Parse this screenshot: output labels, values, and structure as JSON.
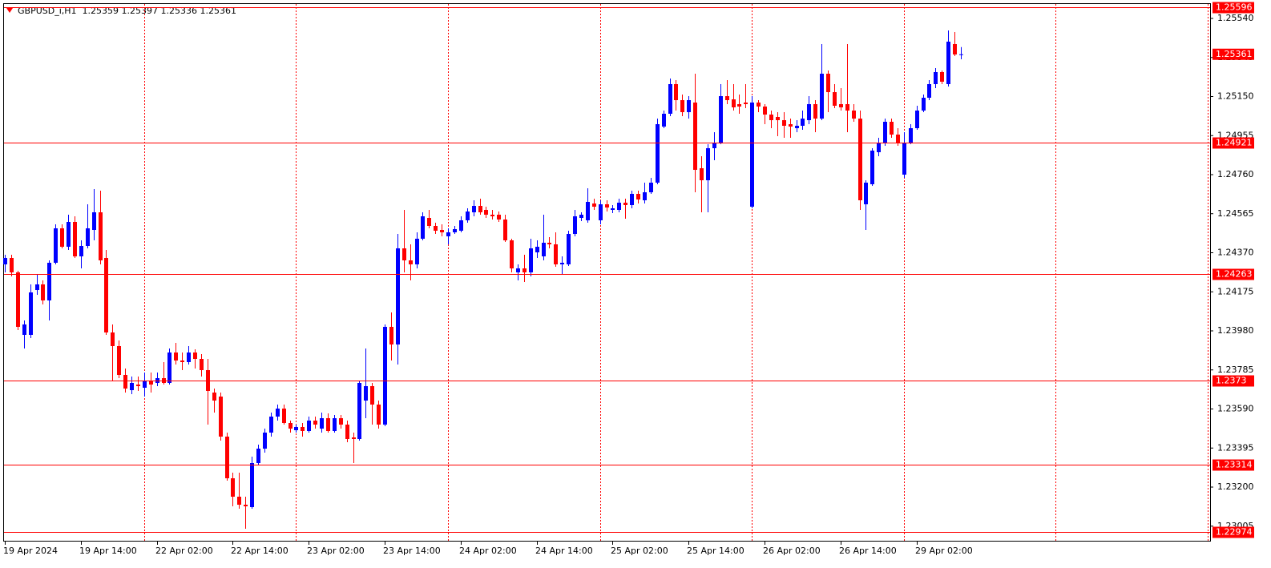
{
  "chart_data": {
    "type": "candlestick",
    "title": "GBPUSD_i,H1  1.25359 1.25397 1.25336 1.25361",
    "up_color": "#0000ff",
    "down_color": "#ff0000",
    "level_color": "#ff0000",
    "ylim": [
      1.22932,
      1.25632
    ],
    "yticks": [
      {
        "value": 1.2554,
        "label": "1.25540"
      },
      1.25345,
      {
        "value": 1.2515,
        "label": "1.25150"
      },
      1.24955,
      {
        "value": 1.2476,
        "label": "1.24760"
      },
      1.24565,
      {
        "value": 1.2437,
        "label": "1.24370"
      },
      1.24175,
      {
        "value": 1.2398,
        "label": "1.23980"
      },
      1.23785,
      {
        "value": 1.2359,
        "label": "1.23590"
      },
      1.23395,
      {
        "value": 1.232,
        "label": "1.23200"
      },
      1.23005
    ],
    "hlines": [
      1.25596,
      1.24921,
      1.24263,
      1.2373,
      1.23314,
      1.22974
    ],
    "x_labels": [
      "19 Apr 2024",
      "19 Apr 14:00",
      "22 Apr 02:00",
      "22 Apr 14:00",
      "23 Apr 02:00",
      "23 Apr 14:00",
      "24 Apr 02:00",
      "24 Apr 14:00",
      "25 Apr 02:00",
      "25 Apr 14:00",
      "26 Apr 02:00",
      "26 Apr 14:00",
      "29 Apr 02:00"
    ],
    "ohlc": [
      [
        1.24312,
        1.2436,
        1.24272,
        1.24344
      ],
      [
        1.24344,
        1.2436,
        1.24252,
        1.24272
      ],
      [
        1.24272,
        1.2428,
        1.23984,
        1.24
      ],
      [
        1.2396,
        1.24032,
        1.23892,
        1.24012
      ],
      [
        1.2396,
        1.24212,
        1.23944,
        1.24172
      ],
      [
        1.24184,
        1.24264,
        1.2416,
        1.24212
      ],
      [
        1.24212,
        1.24232,
        1.24112,
        1.24132
      ],
      [
        1.24132,
        1.24332,
        1.24032,
        1.2432
      ],
      [
        1.2432,
        1.24512,
        1.24312,
        1.24492
      ],
      [
        1.24492,
        1.24512,
        1.24392,
        1.244
      ],
      [
        1.244,
        1.2456,
        1.24384,
        1.24524
      ],
      [
        1.24524,
        1.24552,
        1.24344,
        1.24352
      ],
      [
        1.24352,
        1.24432,
        1.24292,
        1.24404
      ],
      [
        1.24404,
        1.24612,
        1.24392,
        1.24492
      ],
      [
        1.24484,
        1.24688,
        1.24432,
        1.24572
      ],
      [
        1.24572,
        1.2468,
        1.24312,
        1.24332
      ],
      [
        1.24344,
        1.24384,
        1.2396,
        1.23972
      ],
      [
        1.23972,
        1.24012,
        1.23732,
        1.23904
      ],
      [
        1.23904,
        1.23932,
        1.23744,
        1.2376
      ],
      [
        1.2376,
        1.23792,
        1.23672,
        1.23692
      ],
      [
        1.23684,
        1.23752,
        1.23664,
        1.2372
      ],
      [
        1.23712,
        1.23752,
        1.2368,
        1.23704
      ],
      [
        1.23696,
        1.23772,
        1.23652,
        1.23732
      ],
      [
        1.23732,
        1.23772,
        1.23672,
        1.23712
      ],
      [
        1.2372,
        1.23772,
        1.23704,
        1.23744
      ],
      [
        1.23744,
        1.23824,
        1.23712,
        1.2372
      ],
      [
        1.2372,
        1.23892,
        1.23712,
        1.23872
      ],
      [
        1.23872,
        1.2392,
        1.23812,
        1.23832
      ],
      [
        1.23832,
        1.23872,
        1.23784,
        1.23824
      ],
      [
        1.23824,
        1.23904,
        1.23812,
        1.23872
      ],
      [
        1.23872,
        1.23888,
        1.23792,
        1.2384
      ],
      [
        1.2384,
        1.23864,
        1.23752,
        1.23784
      ],
      [
        1.23784,
        1.2384,
        1.23512,
        1.2368
      ],
      [
        1.23672,
        1.23692,
        1.23572,
        1.23632
      ],
      [
        1.23652,
        1.23672,
        1.23432,
        1.23452
      ],
      [
        1.23452,
        1.23472,
        1.23232,
        1.23244
      ],
      [
        1.23244,
        1.23272,
        1.23104,
        1.23152
      ],
      [
        1.23152,
        1.23272,
        1.23092,
        1.23112
      ],
      [
        1.23112,
        1.23152,
        1.22992,
        1.23104
      ],
      [
        1.231,
        1.23352,
        1.23092,
        1.2332
      ],
      [
        1.2332,
        1.23412,
        1.23312,
        1.23392
      ],
      [
        1.23392,
        1.23492,
        1.23372,
        1.23472
      ],
      [
        1.23472,
        1.23572,
        1.23452,
        1.23552
      ],
      [
        1.23552,
        1.23612,
        1.23532,
        1.23592
      ],
      [
        1.23592,
        1.23612,
        1.23512,
        1.2352
      ],
      [
        1.2352,
        1.23532,
        1.23472,
        1.23492
      ],
      [
        1.23484,
        1.23512,
        1.23472,
        1.235
      ],
      [
        1.235,
        1.2352,
        1.23452,
        1.2348
      ],
      [
        1.2348,
        1.23552,
        1.23472,
        1.23532
      ],
      [
        1.23532,
        1.23552,
        1.23492,
        1.23512
      ],
      [
        1.23492,
        1.23572,
        1.23472,
        1.23544
      ],
      [
        1.23544,
        1.23568,
        1.23472,
        1.2348
      ],
      [
        1.2348,
        1.2356,
        1.23472,
        1.23544
      ],
      [
        1.23544,
        1.2356,
        1.23492,
        1.23512
      ],
      [
        1.23512,
        1.23532,
        1.23424,
        1.2344
      ],
      [
        1.23448,
        1.23472,
        1.2332,
        1.2344
      ],
      [
        1.2344,
        1.23732,
        1.23432,
        1.2372
      ],
      [
        1.23632,
        1.23892,
        1.23544,
        1.23704
      ],
      [
        1.23704,
        1.2372,
        1.23512,
        1.23612
      ],
      [
        1.23612,
        1.23632,
        1.23492,
        1.23512
      ],
      [
        1.23512,
        1.24012,
        1.23504,
        1.24
      ],
      [
        1.24,
        1.24072,
        1.23832,
        1.23912
      ],
      [
        1.23912,
        1.24464,
        1.23812,
        1.24392
      ],
      [
        1.24392,
        1.24584,
        1.24272,
        1.24332
      ],
      [
        1.24332,
        1.24412,
        1.24232,
        1.24312
      ],
      [
        1.24312,
        1.24472,
        1.24292,
        1.2444
      ],
      [
        1.2444,
        1.24572,
        1.24432,
        1.24552
      ],
      [
        1.24544,
        1.24584,
        1.24492,
        1.24504
      ],
      [
        1.24504,
        1.2452,
        1.24464,
        1.2448
      ],
      [
        1.24484,
        1.24512,
        1.24452,
        1.24472
      ],
      [
        1.24452,
        1.24492,
        1.24412,
        1.24472
      ],
      [
        1.24472,
        1.24504,
        1.24464,
        1.24488
      ],
      [
        1.2448,
        1.24552,
        1.24472,
        1.24532
      ],
      [
        1.24532,
        1.24592,
        1.2452,
        1.24576
      ],
      [
        1.24572,
        1.24632,
        1.24552,
        1.24604
      ],
      [
        1.24604,
        1.2464,
        1.2456,
        1.24572
      ],
      [
        1.24584,
        1.246,
        1.24544,
        1.2456
      ],
      [
        1.2456,
        1.24584,
        1.24536,
        1.24552
      ],
      [
        1.2456,
        1.24576,
        1.24524,
        1.24536
      ],
      [
        1.24536,
        1.2456,
        1.24424,
        1.24432
      ],
      [
        1.24432,
        1.2444,
        1.24272,
        1.24292
      ],
      [
        1.24272,
        1.24312,
        1.24232,
        1.24292
      ],
      [
        1.24292,
        1.2436,
        1.24224,
        1.24272
      ],
      [
        1.24272,
        1.2444,
        1.24252,
        1.24392
      ],
      [
        1.24372,
        1.24432,
        1.24344,
        1.244
      ],
      [
        1.24352,
        1.2456,
        1.24332,
        1.2442
      ],
      [
        1.2442,
        1.24448,
        1.24392,
        1.24412
      ],
      [
        1.24412,
        1.24472,
        1.243,
        1.24312
      ],
      [
        1.24312,
        1.24352,
        1.24264,
        1.2432
      ],
      [
        1.24312,
        1.2448,
        1.24304,
        1.24464
      ],
      [
        1.24464,
        1.24584,
        1.24452,
        1.24552
      ],
      [
        1.24544,
        1.24572,
        1.24528,
        1.2456
      ],
      [
        1.24532,
        1.24692,
        1.2452,
        1.24624
      ],
      [
        1.24616,
        1.2464,
        1.24584,
        1.246
      ],
      [
        1.24532,
        1.24632,
        1.24512,
        1.24612
      ],
      [
        1.24612,
        1.24632,
        1.24576,
        1.24596
      ],
      [
        1.24584,
        1.24608,
        1.24568,
        1.24592
      ],
      [
        1.24584,
        1.2464,
        1.24572,
        1.2462
      ],
      [
        1.2462,
        1.2464,
        1.2454,
        1.24608
      ],
      [
        1.24608,
        1.2468,
        1.24592,
        1.24664
      ],
      [
        1.24664,
        1.2468,
        1.24616,
        1.24636
      ],
      [
        1.24632,
        1.2472,
        1.24616,
        1.24672
      ],
      [
        1.24672,
        1.24744,
        1.24664,
        1.2472
      ],
      [
        1.2472,
        1.2504,
        1.24712,
        1.25012
      ],
      [
        1.25,
        1.2508,
        1.24992,
        1.25064
      ],
      [
        1.25064,
        1.2524,
        1.25052,
        1.25212
      ],
      [
        1.25212,
        1.25232,
        1.2508,
        1.25132
      ],
      [
        1.25132,
        1.2516,
        1.25052,
        1.25072
      ],
      [
        1.25072,
        1.25152,
        1.2504,
        1.25132
      ],
      [
        1.2512,
        1.25264,
        1.24672,
        1.24784
      ],
      [
        1.24792,
        1.24852,
        1.24572,
        1.24732
      ],
      [
        1.24732,
        1.24912,
        1.24572,
        1.24892
      ],
      [
        1.24892,
        1.24972,
        1.24832,
        1.2492
      ],
      [
        1.2492,
        1.25212,
        1.24912,
        1.25152
      ],
      [
        1.25152,
        1.25232,
        1.25112,
        1.25132
      ],
      [
        1.25136,
        1.25212,
        1.2508,
        1.25096
      ],
      [
        1.25112,
        1.2516,
        1.25064,
        1.251
      ],
      [
        1.2512,
        1.25212,
        1.25092,
        1.25112
      ],
      [
        1.246,
        1.25152,
        1.24592,
        1.2512
      ],
      [
        1.2512,
        1.25132,
        1.25072,
        1.251
      ],
      [
        1.251,
        1.25112,
        1.25012,
        1.2506
      ],
      [
        1.2506,
        1.2508,
        1.24992,
        1.25032
      ],
      [
        1.25048,
        1.25072,
        1.24952,
        1.25032
      ],
      [
        1.25032,
        1.25072,
        1.24944,
        1.25004
      ],
      [
        1.25012,
        1.2504,
        1.24944,
        1.25
      ],
      [
        1.24992,
        1.25032,
        1.24972,
        1.25004
      ],
      [
        1.25004,
        1.2508,
        1.24984,
        1.2504
      ],
      [
        1.25032,
        1.25152,
        1.25012,
        1.25112
      ],
      [
        1.25112,
        1.25132,
        1.24972,
        1.2504
      ],
      [
        1.2504,
        1.25412,
        1.25032,
        1.25264
      ],
      [
        1.25264,
        1.2528,
        1.25072,
        1.25172
      ],
      [
        1.25172,
        1.25212,
        1.25092,
        1.25104
      ],
      [
        1.25112,
        1.25192,
        1.2508,
        1.25096
      ],
      [
        1.25112,
        1.25412,
        1.24972,
        1.2508
      ],
      [
        1.2508,
        1.25112,
        1.25024,
        1.2504
      ],
      [
        1.2504,
        1.2508,
        1.24584,
        1.24632
      ],
      [
        1.24612,
        1.24732,
        1.24484,
        1.2472
      ],
      [
        1.24712,
        1.24892,
        1.24704,
        1.2488
      ],
      [
        1.24872,
        1.24944,
        1.24852,
        1.2492
      ],
      [
        1.2492,
        1.2504,
        1.24904,
        1.25024
      ],
      [
        1.25024,
        1.2504,
        1.24944,
        1.2496
      ],
      [
        1.2496,
        1.24992,
        1.24904,
        1.2492
      ],
      [
        1.2476,
        1.24972,
        1.24744,
        1.2492
      ],
      [
        1.2492,
        1.25012,
        1.24912,
        1.24992
      ],
      [
        1.24992,
        1.25104,
        1.24984,
        1.2508
      ],
      [
        1.2508,
        1.2516,
        1.25072,
        1.25144
      ],
      [
        1.25144,
        1.25232,
        1.25132,
        1.25212
      ],
      [
        1.25212,
        1.25292,
        1.25192,
        1.25272
      ],
      [
        1.25272,
        1.2528,
        1.25212,
        1.25224
      ],
      [
        1.25212,
        1.2548,
        1.252,
        1.25424
      ],
      [
        1.25412,
        1.25472,
        1.25352,
        1.2536
      ],
      [
        1.25359,
        1.25397,
        1.25336,
        1.25361
      ]
    ]
  }
}
